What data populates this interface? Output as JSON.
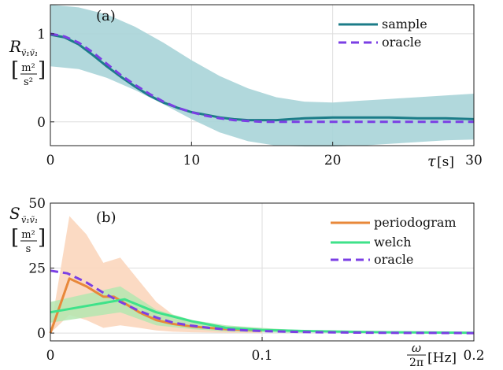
{
  "chart_data": [
    {
      "type": "line",
      "panel_label": "(a)",
      "xlabel_math": "τ",
      "xlabel_unit": "[s]",
      "ylabel_math": "R",
      "ylabel_sub": "ṽ₁ṽ₁",
      "ylabel_unit_num": "m²",
      "ylabel_unit_den": "s²",
      "xlim": [
        0,
        30
      ],
      "ylim": [
        -0.27,
        1.33
      ],
      "xticks": [
        0,
        10,
        20,
        30
      ],
      "xtick_labels": [
        "0",
        "10",
        "20",
        "30"
      ],
      "yticks": [
        0,
        1
      ],
      "ytick_labels": [
        "0",
        "1"
      ],
      "grid": true,
      "legend_position": "top-right",
      "band": {
        "color": "#a8d4d8",
        "x": [
          0,
          2,
          4,
          6,
          8,
          10,
          12,
          14,
          16,
          18,
          20,
          22,
          24,
          26,
          28,
          30
        ],
        "upper": [
          1.33,
          1.3,
          1.22,
          1.08,
          0.9,
          0.7,
          0.52,
          0.38,
          0.28,
          0.23,
          0.22,
          0.24,
          0.26,
          0.28,
          0.3,
          0.32
        ],
        "lower": [
          0.63,
          0.6,
          0.5,
          0.36,
          0.2,
          0.03,
          -0.12,
          -0.22,
          -0.27,
          -0.28,
          -0.28,
          -0.27,
          -0.25,
          -0.23,
          -0.21,
          -0.2
        ]
      },
      "series": [
        {
          "name": "sample",
          "color": "#1c7c88",
          "dash": "solid",
          "x": [
            0,
            1,
            2,
            3,
            4,
            5,
            6,
            7,
            8,
            9,
            10,
            11,
            12,
            13,
            14,
            15,
            16,
            17,
            18,
            20,
            22,
            24,
            26,
            28,
            30
          ],
          "y": [
            0.99,
            0.96,
            0.88,
            0.76,
            0.63,
            0.51,
            0.4,
            0.3,
            0.22,
            0.16,
            0.11,
            0.08,
            0.05,
            0.03,
            0.02,
            0.02,
            0.02,
            0.03,
            0.04,
            0.05,
            0.05,
            0.05,
            0.04,
            0.04,
            0.03
          ]
        },
        {
          "name": "oracle",
          "color": "#7b3fe4",
          "dash": "dashed",
          "x": [
            0,
            1,
            2,
            3,
            4,
            5,
            6,
            7,
            8,
            9,
            10,
            11,
            12,
            13,
            14,
            15,
            16,
            17,
            18,
            20,
            22,
            24,
            26,
            28,
            30
          ],
          "y": [
            1.0,
            0.97,
            0.9,
            0.79,
            0.66,
            0.53,
            0.42,
            0.32,
            0.23,
            0.16,
            0.11,
            0.07,
            0.04,
            0.02,
            0.01,
            0.0,
            0.0,
            0.0,
            0.0,
            0.0,
            0.0,
            0.0,
            0.0,
            0.0,
            0.0
          ]
        }
      ]
    },
    {
      "type": "line",
      "panel_label": "(b)",
      "xlabel_frac_num": "ω",
      "xlabel_frac_den": "2π",
      "xlabel_unit": "[Hz]",
      "ylabel_math": "S",
      "ylabel_sub": "ṽ₁ṽ₁",
      "ylabel_unit_num": "m²",
      "ylabel_unit_den": "s",
      "xlim": [
        0,
        0.2
      ],
      "ylim": [
        -3,
        50
      ],
      "xticks": [
        0,
        0.1,
        0.2
      ],
      "xtick_labels": [
        "0",
        "0.1",
        "0.2"
      ],
      "yticks": [
        0,
        25,
        50
      ],
      "ytick_labels": [
        "0",
        "25",
        "50"
      ],
      "grid": true,
      "legend_position": "top-right",
      "bands": [
        {
          "color": "#fbd6bc",
          "x": [
            0,
            0.009,
            0.017,
            0.025,
            0.033,
            0.042,
            0.05,
            0.058,
            0.067,
            0.075,
            0.083,
            0.1
          ],
          "upper": [
            1,
            45,
            38,
            27,
            29,
            20,
            12,
            7,
            4,
            2.5,
            2,
            1.5
          ],
          "lower": [
            0,
            7,
            5,
            2,
            3,
            2,
            1,
            0.5,
            0.3,
            0.2,
            0.1,
            0
          ]
        },
        {
          "color": "#b4e6b0",
          "x": [
            0,
            0.033,
            0.05,
            0.067,
            0.083,
            0.1,
            0.12
          ],
          "upper": [
            12,
            18,
            9,
            5,
            3,
            2,
            1
          ],
          "lower": [
            4,
            8,
            3,
            1.5,
            0.6,
            0.3,
            0
          ]
        }
      ],
      "series": [
        {
          "name": "periodogram",
          "color": "#e8883a",
          "dash": "solid",
          "x": [
            0,
            0.009,
            0.017,
            0.025,
            0.03,
            0.033,
            0.042,
            0.05,
            0.058,
            0.067,
            0.075,
            0.083,
            0.1
          ],
          "y": [
            0,
            21,
            18,
            14,
            14,
            12.5,
            8,
            5,
            3.5,
            2.5,
            2,
            1.5,
            1
          ]
        },
        {
          "name": "welch",
          "color": "#3ee28a",
          "dash": "solid",
          "x": [
            0,
            0.035,
            0.05,
            0.067,
            0.083,
            0.1,
            0.12,
            0.14,
            0.16,
            0.18,
            0.2
          ],
          "y": [
            8,
            13,
            8,
            4.5,
            2,
            1.2,
            0.8,
            0.5,
            0.3,
            0.2,
            0.1
          ]
        },
        {
          "name": "oracle",
          "color": "#7b3fe4",
          "dash": "dashed",
          "x": [
            0,
            0.008,
            0.017,
            0.025,
            0.033,
            0.042,
            0.05,
            0.058,
            0.067,
            0.075,
            0.083,
            0.1,
            0.12,
            0.14,
            0.16,
            0.18,
            0.2
          ],
          "y": [
            24,
            23,
            19.5,
            15.5,
            12,
            8.5,
            6,
            4,
            2.8,
            2,
            1.4,
            0.8,
            0.4,
            0.2,
            0.1,
            0.05,
            0
          ]
        }
      ]
    }
  ]
}
